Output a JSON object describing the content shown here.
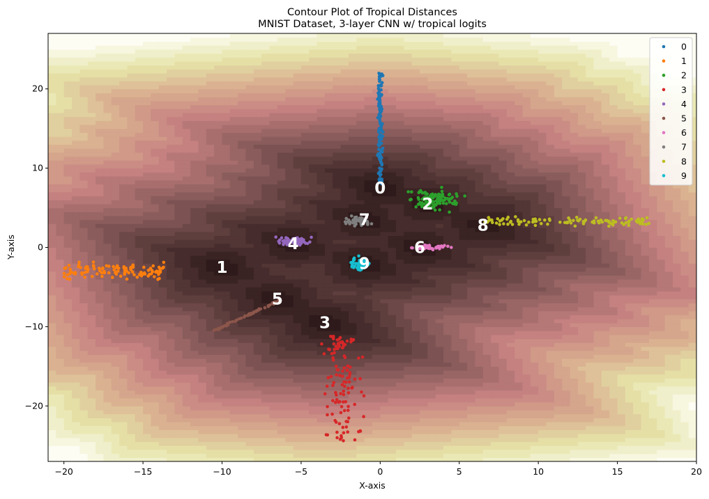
{
  "chart_data": {
    "type": "scatter",
    "background": "contour",
    "title": "Contour Plot of Tropical Distances",
    "subtitle": "MNIST Dataset, 3-layer CNN w/ tropical logits",
    "xlabel": "X-axis",
    "ylabel": "Y-axis",
    "xlim": [
      -21,
      20
    ],
    "ylim": [
      -27,
      27
    ],
    "xticks": [
      -20,
      -15,
      -10,
      -5,
      0,
      5,
      10,
      15,
      20
    ],
    "yticks": [
      -20,
      -10,
      0,
      10,
      20
    ],
    "xtick_labels": [
      "−20",
      "−15",
      "−10",
      "−5",
      "0",
      "5",
      "10",
      "15",
      "20"
    ],
    "ytick_labels": [
      "−20",
      "−10",
      "0",
      "10",
      "20"
    ],
    "grid": false,
    "legend_position": "top-right",
    "contour_colors": [
      "#2e1a1a",
      "#5a3b3b",
      "#8f5f5f",
      "#c58080",
      "#d9ad8f",
      "#e6e4a8",
      "#fdfdf4"
    ],
    "series": [
      {
        "name": "0",
        "color": "#1f77b4",
        "centroid": [
          0.0,
          7.5
        ],
        "shape": "vertical",
        "y_range": [
          8,
          22
        ],
        "spread": [
          0.5,
          1.0
        ],
        "n": 140
      },
      {
        "name": "1",
        "color": "#ff7f0e",
        "centroid": [
          -10.0,
          -2.5
        ],
        "shape": "horizontal",
        "x_range": [
          -20,
          -13.5
        ],
        "center_y": -2.9,
        "spread": [
          0.3,
          0.5
        ],
        "n": 110
      },
      {
        "name": "2",
        "color": "#2ca02c",
        "centroid": [
          3.0,
          5.5
        ],
        "shape": "blob",
        "center": [
          3.5,
          6.0
        ],
        "spread": [
          0.8,
          0.6
        ],
        "n": 110
      },
      {
        "name": "3",
        "color": "#d62728",
        "centroid": [
          -3.5,
          -9.5
        ],
        "shape": "vertical",
        "y_range": [
          -24.5,
          -11
        ],
        "center_x": -2.5,
        "spread": [
          0.6,
          1.0
        ],
        "n": 120
      },
      {
        "name": "4",
        "color": "#9467bd",
        "centroid": [
          -5.5,
          0.5
        ],
        "shape": "blob",
        "center": [
          -5.5,
          0.8
        ],
        "spread": [
          0.5,
          0.3
        ],
        "n": 80
      },
      {
        "name": "5",
        "color": "#8c564b",
        "centroid": [
          -6.5,
          -6.5
        ],
        "shape": "diagonal",
        "from": [
          -10.5,
          -10.5
        ],
        "to": [
          -6.3,
          -6.6
        ],
        "n": 60
      },
      {
        "name": "6",
        "color": "#e377c2",
        "centroid": [
          2.5,
          0.0
        ],
        "shape": "blob",
        "center": [
          3.2,
          0.0
        ],
        "spread": [
          0.5,
          0.12
        ],
        "n": 50
      },
      {
        "name": "7",
        "color": "#7f7f7f",
        "centroid": [
          -1.0,
          3.5
        ],
        "shape": "blob",
        "center": [
          -1.4,
          3.3
        ],
        "spread": [
          0.4,
          0.3
        ],
        "n": 50
      },
      {
        "name": "8",
        "color": "#bcbd22",
        "centroid": [
          6.5,
          2.8
        ],
        "shape": "horizontal",
        "x_range": [
          6.5,
          17
        ],
        "center_y": 3.3,
        "spread": [
          0.4,
          0.3
        ],
        "n": 110
      },
      {
        "name": "9",
        "color": "#17becf",
        "centroid": [
          -1.0,
          -2.0
        ],
        "shape": "blob",
        "center": [
          -1.2,
          -2.1
        ],
        "spread": [
          0.3,
          0.4
        ],
        "n": 60
      }
    ]
  }
}
